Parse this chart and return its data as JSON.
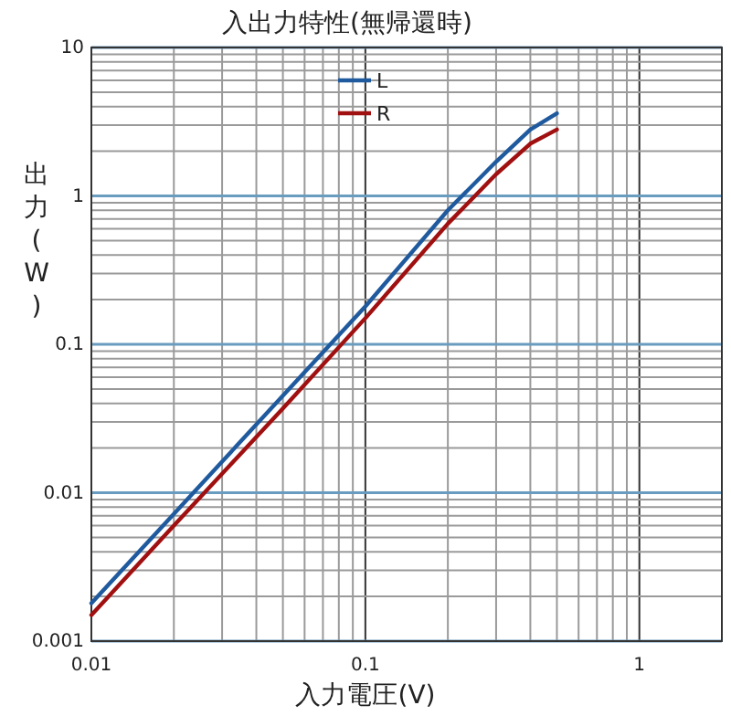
{
  "chart_data": {
    "type": "line",
    "title": "入出力特性(無帰還時)",
    "xlabel": "入力電圧(V)",
    "ylabel": "出力(W)",
    "log": "xy",
    "grid": true,
    "legend": "top",
    "marker": "none",
    "line_style": "solid",
    "xlim": [
      0.01,
      2
    ],
    "xticks": [
      0.01,
      0.1,
      1
    ],
    "ylim": [
      0.001,
      10
    ],
    "yticks": [
      0.001,
      0.01,
      0.1,
      1,
      10
    ],
    "series": [
      {
        "name": "L",
        "color": "#1f5a9e",
        "x": [
          0.01,
          0.02,
          0.05,
          0.1,
          0.2,
          0.3,
          0.4,
          0.5
        ],
        "values": [
          0.0018,
          0.0072,
          0.045,
          0.18,
          0.8,
          1.7,
          2.8,
          3.6
        ]
      },
      {
        "name": "R",
        "color": "#a01010",
        "x": [
          0.01,
          0.02,
          0.05,
          0.1,
          0.2,
          0.3,
          0.4,
          0.5
        ],
        "values": [
          0.0015,
          0.006,
          0.037,
          0.15,
          0.65,
          1.4,
          2.25,
          2.8
        ]
      }
    ]
  }
}
